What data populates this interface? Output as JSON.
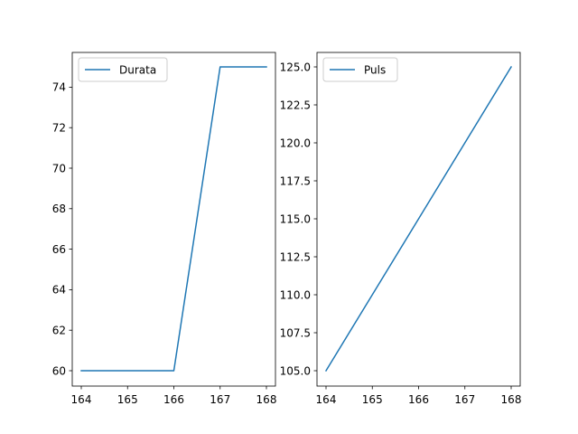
{
  "chart_data": [
    {
      "type": "line",
      "xlim": [
        164,
        168
      ],
      "ylim": [
        60,
        75
      ],
      "x_ticks": [
        "164",
        "165",
        "166",
        "167",
        "168"
      ],
      "y_ticks": [
        "60",
        "62",
        "64",
        "66",
        "68",
        "70",
        "72",
        "74"
      ],
      "grid": false,
      "legend_position": "top-left",
      "series": [
        {
          "name": "Durata",
          "color": "#1f77b4",
          "x": [
            164,
            165,
            166,
            167,
            168
          ],
          "values": [
            60,
            60,
            60,
            75,
            75
          ]
        }
      ]
    },
    {
      "type": "line",
      "xlim": [
        164,
        168
      ],
      "ylim": [
        105,
        125
      ],
      "x_ticks": [
        "164",
        "165",
        "166",
        "167",
        "168"
      ],
      "y_ticks": [
        "105.0",
        "107.5",
        "110.0",
        "112.5",
        "115.0",
        "117.5",
        "120.0",
        "122.5",
        "125.0"
      ],
      "grid": false,
      "legend_position": "top-left",
      "series": [
        {
          "name": "Puls",
          "color": "#1f77b4",
          "x": [
            164,
            165,
            166,
            167,
            168
          ],
          "values": [
            105,
            110,
            115,
            120,
            125
          ]
        }
      ]
    }
  ]
}
